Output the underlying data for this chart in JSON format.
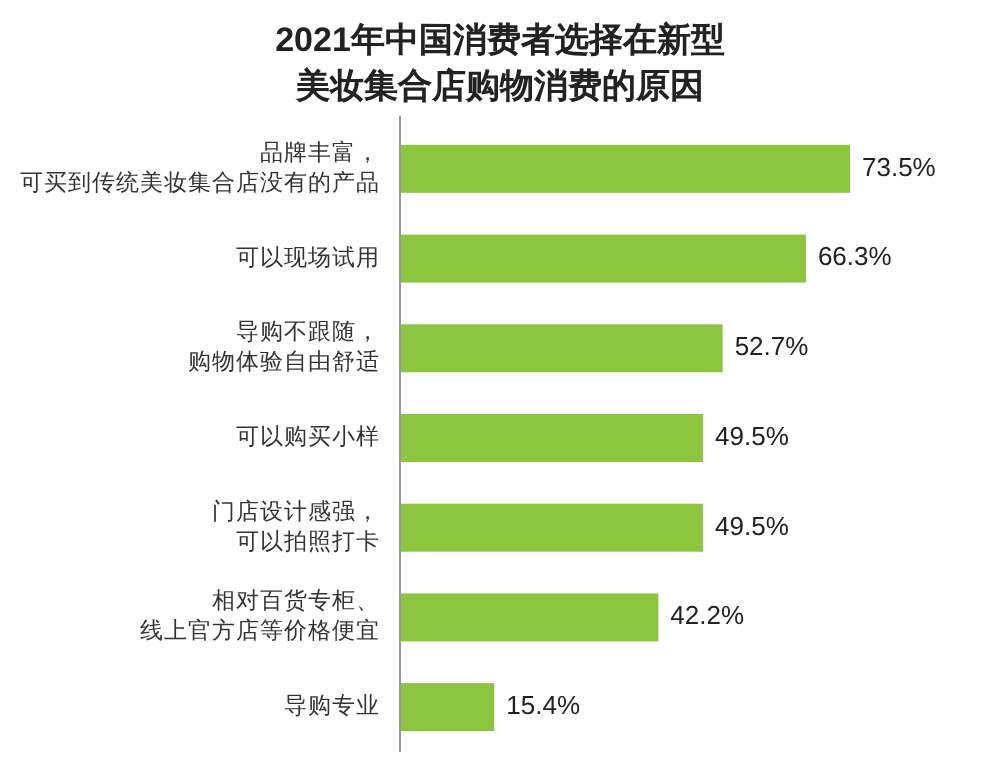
{
  "chart_data": {
    "type": "bar",
    "orientation": "horizontal",
    "title": "2021年中国消费者选择在新型美妆集合店购物消费的原因",
    "categories": [
      "品牌丰富，可买到传统美妆集合店没有的产品",
      "可以现场试用",
      "导购不跟随，购物体验自由舒适",
      "可以购买小样",
      "门店设计感强，可以拍照打卡",
      "相对百货专柜、线上官方店等价格便宜",
      "导购专业"
    ],
    "values": [
      73.5,
      66.3,
      52.7,
      49.5,
      49.5,
      42.2,
      15.4
    ],
    "value_labels": [
      "73.5%",
      "66.3%",
      "52.7%",
      "49.5%",
      "49.5%",
      "42.2%",
      "15.4%"
    ],
    "color": "#8cc63f"
  }
}
